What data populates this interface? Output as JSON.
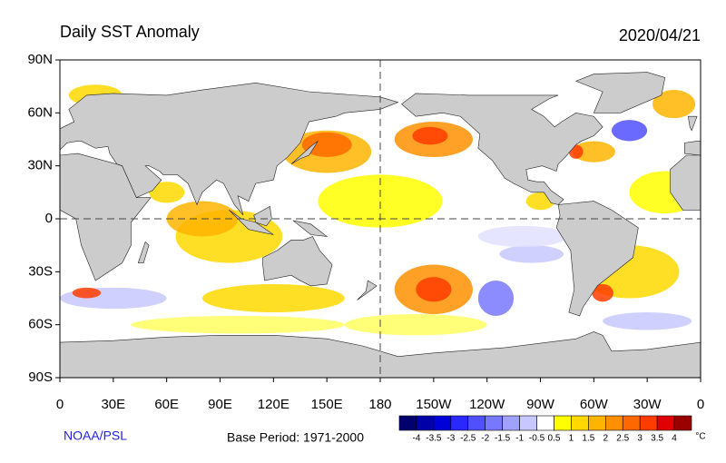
{
  "title": "Daily SST Anomaly",
  "date": "2020/04/21",
  "map": {
    "lat_labels": [
      "90N",
      "60N",
      "30N",
      "0",
      "30S",
      "60S",
      "90S"
    ],
    "lon_labels": [
      "0",
      "30E",
      "60E",
      "90E",
      "120E",
      "150E",
      "180",
      "150W",
      "120W",
      "90W",
      "60W",
      "30W",
      "0"
    ]
  },
  "credit": "NOAA/PSL",
  "base_period": "Base Period: 1971-2000",
  "colorbar": {
    "labels": [
      -4,
      -3.5,
      -3,
      -2.5,
      -2,
      -1.5,
      -1,
      -0.5,
      0.5,
      1,
      1.5,
      2,
      2.5,
      3,
      3.5,
      4
    ],
    "colors": [
      "#00006e",
      "#0000a8",
      "#0000d8",
      "#2828ff",
      "#5050ff",
      "#7878ff",
      "#a0a0ff",
      "#c8c8ff",
      "#ffffff",
      "#ffff00",
      "#ffd800",
      "#ffb400",
      "#ff9000",
      "#ff6800",
      "#ff3c00",
      "#e00000",
      "#9a0000"
    ],
    "unit": "°C"
  }
}
